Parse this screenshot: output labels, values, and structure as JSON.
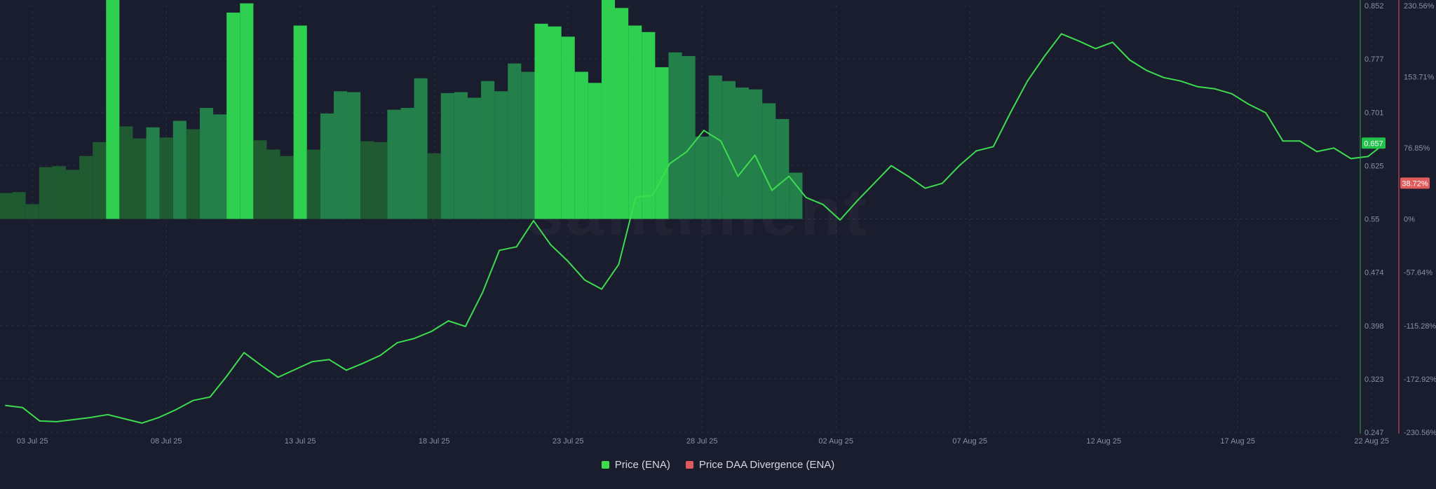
{
  "chart_data": {
    "type": "bar+line",
    "title": "",
    "watermark": "santiment",
    "colors": {
      "background": "#1a1d2e",
      "grid": "#2c3044",
      "price_line": "#3ddc4f",
      "price_axis_line": "#2fae45",
      "divergence_axis_line": "#e05c5c",
      "bar_dark": "#1f5a30",
      "bar_mid": "#23804a",
      "bar_bright": "#2fd050",
      "axis_text": "#8a90a6"
    },
    "x_ticks": [
      "03 Jul 25",
      "08 Jul 25",
      "13 Jul 25",
      "18 Jul 25",
      "23 Jul 25",
      "28 Jul 25",
      "02 Aug 25",
      "07 Aug 25",
      "12 Aug 25",
      "17 Aug 25",
      "22 Aug 25"
    ],
    "price_axis": {
      "ticks": [
        "0.852",
        "0.777",
        "0.701",
        "0.625",
        "0.55",
        "0.474",
        "0.398",
        "0.323",
        "0.247"
      ],
      "range": [
        0.247,
        0.852
      ],
      "current_label": "0.657"
    },
    "divergence_axis": {
      "ticks": [
        "230.56%",
        "153.71%",
        "76.85%",
        "0%",
        "-57.64%",
        "-115.28%",
        "-172.92%",
        "-230.56%"
      ],
      "range": [
        -230.56,
        230.56
      ],
      "current_label": "38.72%"
    },
    "legend": [
      {
        "name": "Price (ENA)",
        "color": "#3ddc4f"
      },
      {
        "name": "Price DAA Divergence (ENA)",
        "color": "#e05c5c"
      }
    ],
    "divergence_bars": {
      "start_date": "2025-07-02",
      "values": [
        28,
        29,
        16,
        56,
        57,
        53,
        68,
        83,
        271,
        100,
        87,
        99,
        88,
        106,
        97,
        120,
        113,
        223,
        233,
        85,
        75,
        68,
        209,
        75,
        114,
        138,
        137,
        84,
        83,
        118,
        120,
        152,
        71,
        136,
        137,
        131,
        149,
        138,
        168,
        159,
        211,
        208,
        197,
        159,
        147,
        240,
        228,
        209,
        202,
        164,
        180,
        176,
        89,
        155,
        149,
        142,
        140,
        125,
        108,
        50
      ],
      "intensity": [
        "dark",
        "dark",
        "dark",
        "dark",
        "dark",
        "dark",
        "dark",
        "dark",
        "bright",
        "dark",
        "dark",
        "mid",
        "dark",
        "mid",
        "dark",
        "mid",
        "mid",
        "bright",
        "bright",
        "dark",
        "dark",
        "dark",
        "bright",
        "dark",
        "mid",
        "mid",
        "mid",
        "dark",
        "dark",
        "mid",
        "mid",
        "mid",
        "dark",
        "mid",
        "mid",
        "mid",
        "mid",
        "mid",
        "mid",
        "mid",
        "bright",
        "bright",
        "bright",
        "bright",
        "bright",
        "bright",
        "bright",
        "bright",
        "bright",
        "bright",
        "mid",
        "mid",
        "mid",
        "mid",
        "mid",
        "mid",
        "mid",
        "mid",
        "mid",
        "mid"
      ]
    },
    "price_series": {
      "name": "Price (ENA)",
      "start_date": "2025-07-02",
      "values": [
        0.285,
        0.282,
        0.263,
        0.262,
        0.265,
        0.268,
        0.272,
        0.266,
        0.26,
        0.268,
        0.279,
        0.292,
        0.297,
        0.327,
        0.36,
        0.342,
        0.325,
        0.336,
        0.347,
        0.35,
        0.335,
        0.345,
        0.356,
        0.374,
        0.38,
        0.39,
        0.405,
        0.397,
        0.445,
        0.505,
        0.51,
        0.547,
        0.513,
        0.49,
        0.463,
        0.45,
        0.485,
        0.58,
        0.583,
        0.628,
        0.645,
        0.675,
        0.66,
        0.61,
        0.64,
        0.59,
        0.61,
        0.58,
        0.57,
        0.548,
        0.575,
        0.6,
        0.625,
        0.61,
        0.593,
        0.6,
        0.625,
        0.646,
        0.652,
        0.7,
        0.745,
        0.78,
        0.812,
        0.802,
        0.791,
        0.8,
        0.775,
        0.76,
        0.75,
        0.745,
        0.737,
        0.734,
        0.727,
        0.712,
        0.7,
        0.66,
        0.66,
        0.645,
        0.65,
        0.635,
        0.638,
        0.657
      ]
    }
  }
}
